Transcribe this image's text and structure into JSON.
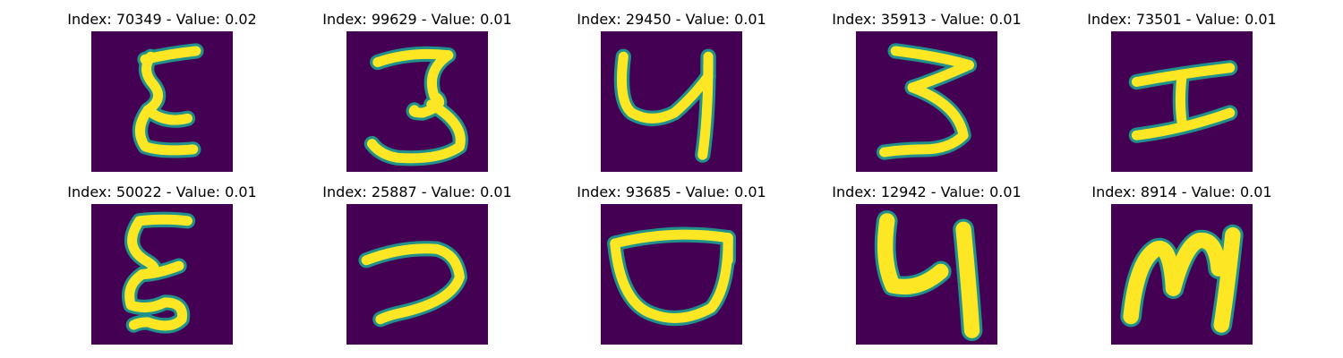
{
  "figure": {
    "background_color": "#ffffff",
    "image_background_color": "#440154",
    "colormap": "viridis",
    "stroke_color": "#fde725",
    "edge_color": "#21918c"
  },
  "grid": [
    {
      "title": "Index: 70349 - Value: 0.02",
      "index": 70349,
      "value": 0.02,
      "glyph": "epsilon-like"
    },
    {
      "title": "Index: 99629 - Value: 0.01",
      "index": 99629,
      "value": 0.01,
      "glyph": "three"
    },
    {
      "title": "Index: 29450 - Value: 0.01",
      "index": 29450,
      "value": 0.01,
      "glyph": "four-like"
    },
    {
      "title": "Index: 35913 - Value: 0.01",
      "index": 35913,
      "value": 0.01,
      "glyph": "three-flat"
    },
    {
      "title": "Index: 73501 - Value: 0.01",
      "index": 73501,
      "value": 0.01,
      "glyph": "I"
    },
    {
      "title": "Index: 50022 - Value: 0.01",
      "index": 50022,
      "value": 0.01,
      "glyph": "xi-like"
    },
    {
      "title": "Index: 25887 - Value: 0.01",
      "index": 25887,
      "value": 0.01,
      "glyph": "hook"
    },
    {
      "title": "Index: 93685 - Value: 0.01",
      "index": 93685,
      "value": 0.01,
      "glyph": "bowl"
    },
    {
      "title": "Index: 12942 - Value: 0.01",
      "index": 12942,
      "value": 0.01,
      "glyph": "four-like-bold"
    },
    {
      "title": "Index: 8914 - Value: 0.01",
      "index": 8914,
      "value": 0.01,
      "glyph": "m-like"
    }
  ]
}
